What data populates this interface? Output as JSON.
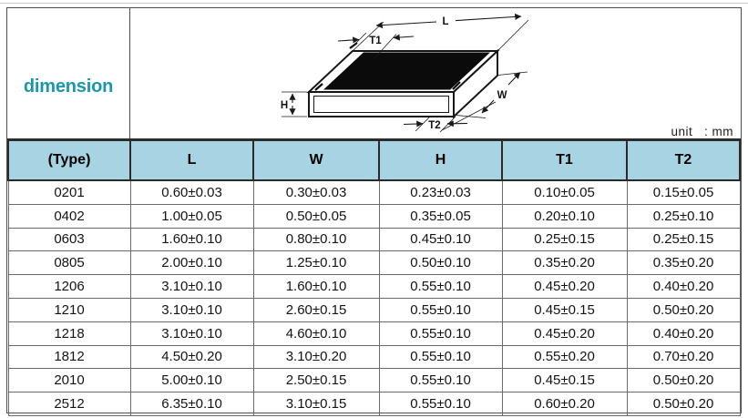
{
  "header": {
    "title": "dimension",
    "unit_label": "unit   : mm"
  },
  "diagram": {
    "description": "isometric-chip-resistor-package",
    "labels": {
      "L": "L",
      "T1": "T1",
      "H": "H",
      "T2": "T2",
      "W": "W"
    }
  },
  "table": {
    "columns": [
      "(Type)",
      "L",
      "W",
      "H",
      "T1",
      "T2"
    ],
    "rows": [
      [
        "0201",
        "0.60±0.03",
        "0.30±0.03",
        "0.23±0.03",
        "0.10±0.05",
        "0.15±0.05"
      ],
      [
        "0402",
        "1.00±0.05",
        "0.50±0.05",
        "0.35±0.05",
        "0.20±0.10",
        "0.25±0.10"
      ],
      [
        "0603",
        "1.60±0.10",
        "0.80±0.10",
        "0.45±0.10",
        "0.25±0.15",
        "0.25±0.15"
      ],
      [
        "0805",
        "2.00±0.10",
        "1.25±0.10",
        "0.50±0.10",
        "0.35±0.20",
        "0.35±0.20"
      ],
      [
        "1206",
        "3.10±0.10",
        "1.60±0.10",
        "0.55±0.10",
        "0.45±0.20",
        "0.40±0.20"
      ],
      [
        "1210",
        "3.10±0.10",
        "2.60±0.15",
        "0.55±0.10",
        "0.45±0.15",
        "0.50±0.20"
      ],
      [
        "1218",
        "3.10±0.10",
        "4.60±0.10",
        "0.55±0.10",
        "0.45±0.20",
        "0.40±0.20"
      ],
      [
        "1812",
        "4.50±0.20",
        "3.10±0.20",
        "0.55±0.10",
        "0.55±0.20",
        "0.70±0.20"
      ],
      [
        "2010",
        "5.00±0.10",
        "2.50±0.15",
        "0.55±0.10",
        "0.45±0.15",
        "0.50±0.20"
      ],
      [
        "2512",
        "6.35±0.10",
        "3.10±0.15",
        "0.55±0.10",
        "0.60±0.20",
        "0.50±0.20"
      ]
    ]
  },
  "colors": {
    "header_bg": "#a7d3e3",
    "accent_teal": "#1a97ad",
    "grid_line": "#6a6a6a",
    "frame_line": "#4f4f4f",
    "header_line": "#2b2b2b",
    "ink": "#141414"
  }
}
